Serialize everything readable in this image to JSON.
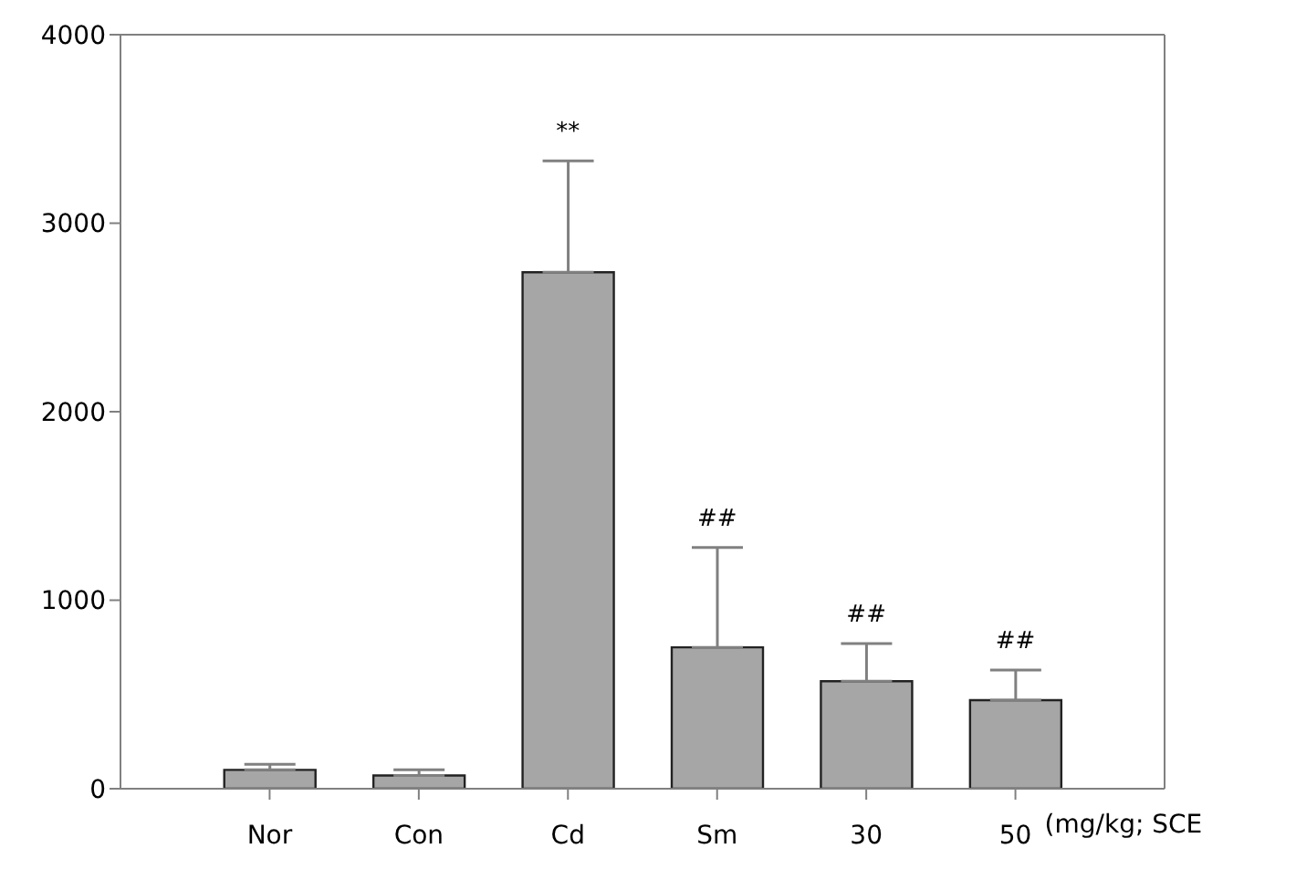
{
  "chart_data": {
    "type": "bar",
    "categories": [
      "Nor",
      "Con",
      "Cd",
      "Sm",
      "30",
      "50"
    ],
    "values": [
      100,
      70,
      2740,
      750,
      570,
      470
    ],
    "errors": [
      [
        100,
        130
      ],
      [
        70,
        100
      ],
      [
        2740,
        3330
      ],
      [
        750,
        1280
      ],
      [
        570,
        770
      ],
      [
        470,
        630
      ]
    ],
    "color": "#a6a6a6",
    "ylim": [
      0,
      4000
    ],
    "yticks": [
      0,
      1000,
      2000,
      3000,
      4000
    ],
    "annotations": [
      {
        "text": "**",
        "x": "Cd",
        "y": 3330
      },
      {
        "text": "##",
        "x": "Sm",
        "y": 1280
      },
      {
        "text": "##",
        "x": "30",
        "y": 770
      },
      {
        "text": "##",
        "x": "50",
        "y": 630
      },
      "(mg/kg; SCE"
    ]
  }
}
